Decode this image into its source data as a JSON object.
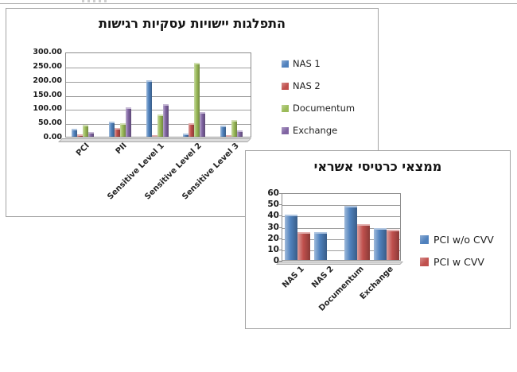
{
  "page": {
    "background": "#ffffff"
  },
  "decor": {
    "top_line_color": "#b4b4b4"
  },
  "chart_data": [
    {
      "type": "bar",
      "title": "התפלגות יישויות עסקיות רגישות",
      "categories": [
        "PCI",
        "PII",
        "Sensitive Level 1",
        "Sensitive Level 2",
        "Sensitive Level 3"
      ],
      "series": [
        {
          "name": "NAS 1",
          "color": "#4F81BD",
          "values": [
            28,
            52,
            200,
            12,
            38
          ]
        },
        {
          "name": "NAS 2",
          "color": "#C0504D",
          "values": [
            8,
            30,
            6,
            49,
            5
          ]
        },
        {
          "name": "Documentum",
          "color": "#9BBB59",
          "values": [
            42,
            47,
            78,
            260,
            60
          ]
        },
        {
          "name": "Exchange",
          "color": "#8064A2",
          "values": [
            16,
            105,
            114,
            86,
            22
          ]
        }
      ],
      "ylim": [
        0,
        300
      ],
      "ytick_step": 50,
      "yticklabels": [
        "0.00",
        "50.00",
        "100.00",
        "150.00",
        "200.00",
        "250.00",
        "300.00"
      ],
      "grid": true,
      "legend_position": "right",
      "style": "3d-clustered-column"
    },
    {
      "type": "bar",
      "title": "ממצאי כרטיסי אשראי",
      "categories": [
        "NAS 1",
        "NAS 2",
        "Documentum",
        "Exchange"
      ],
      "series": [
        {
          "name": "PCI w/o CVV",
          "color": "#4F81BD",
          "values": [
            40,
            25,
            48,
            28
          ]
        },
        {
          "name": "PCI w CVV",
          "color": "#C0504D",
          "values": [
            25,
            0,
            32,
            27
          ]
        }
      ],
      "ylim": [
        0,
        60
      ],
      "ytick_step": 10,
      "yticklabels": [
        "0",
        "10",
        "20",
        "30",
        "40",
        "50",
        "60"
      ],
      "grid": true,
      "legend_position": "right",
      "style": "3d-clustered-column"
    }
  ]
}
